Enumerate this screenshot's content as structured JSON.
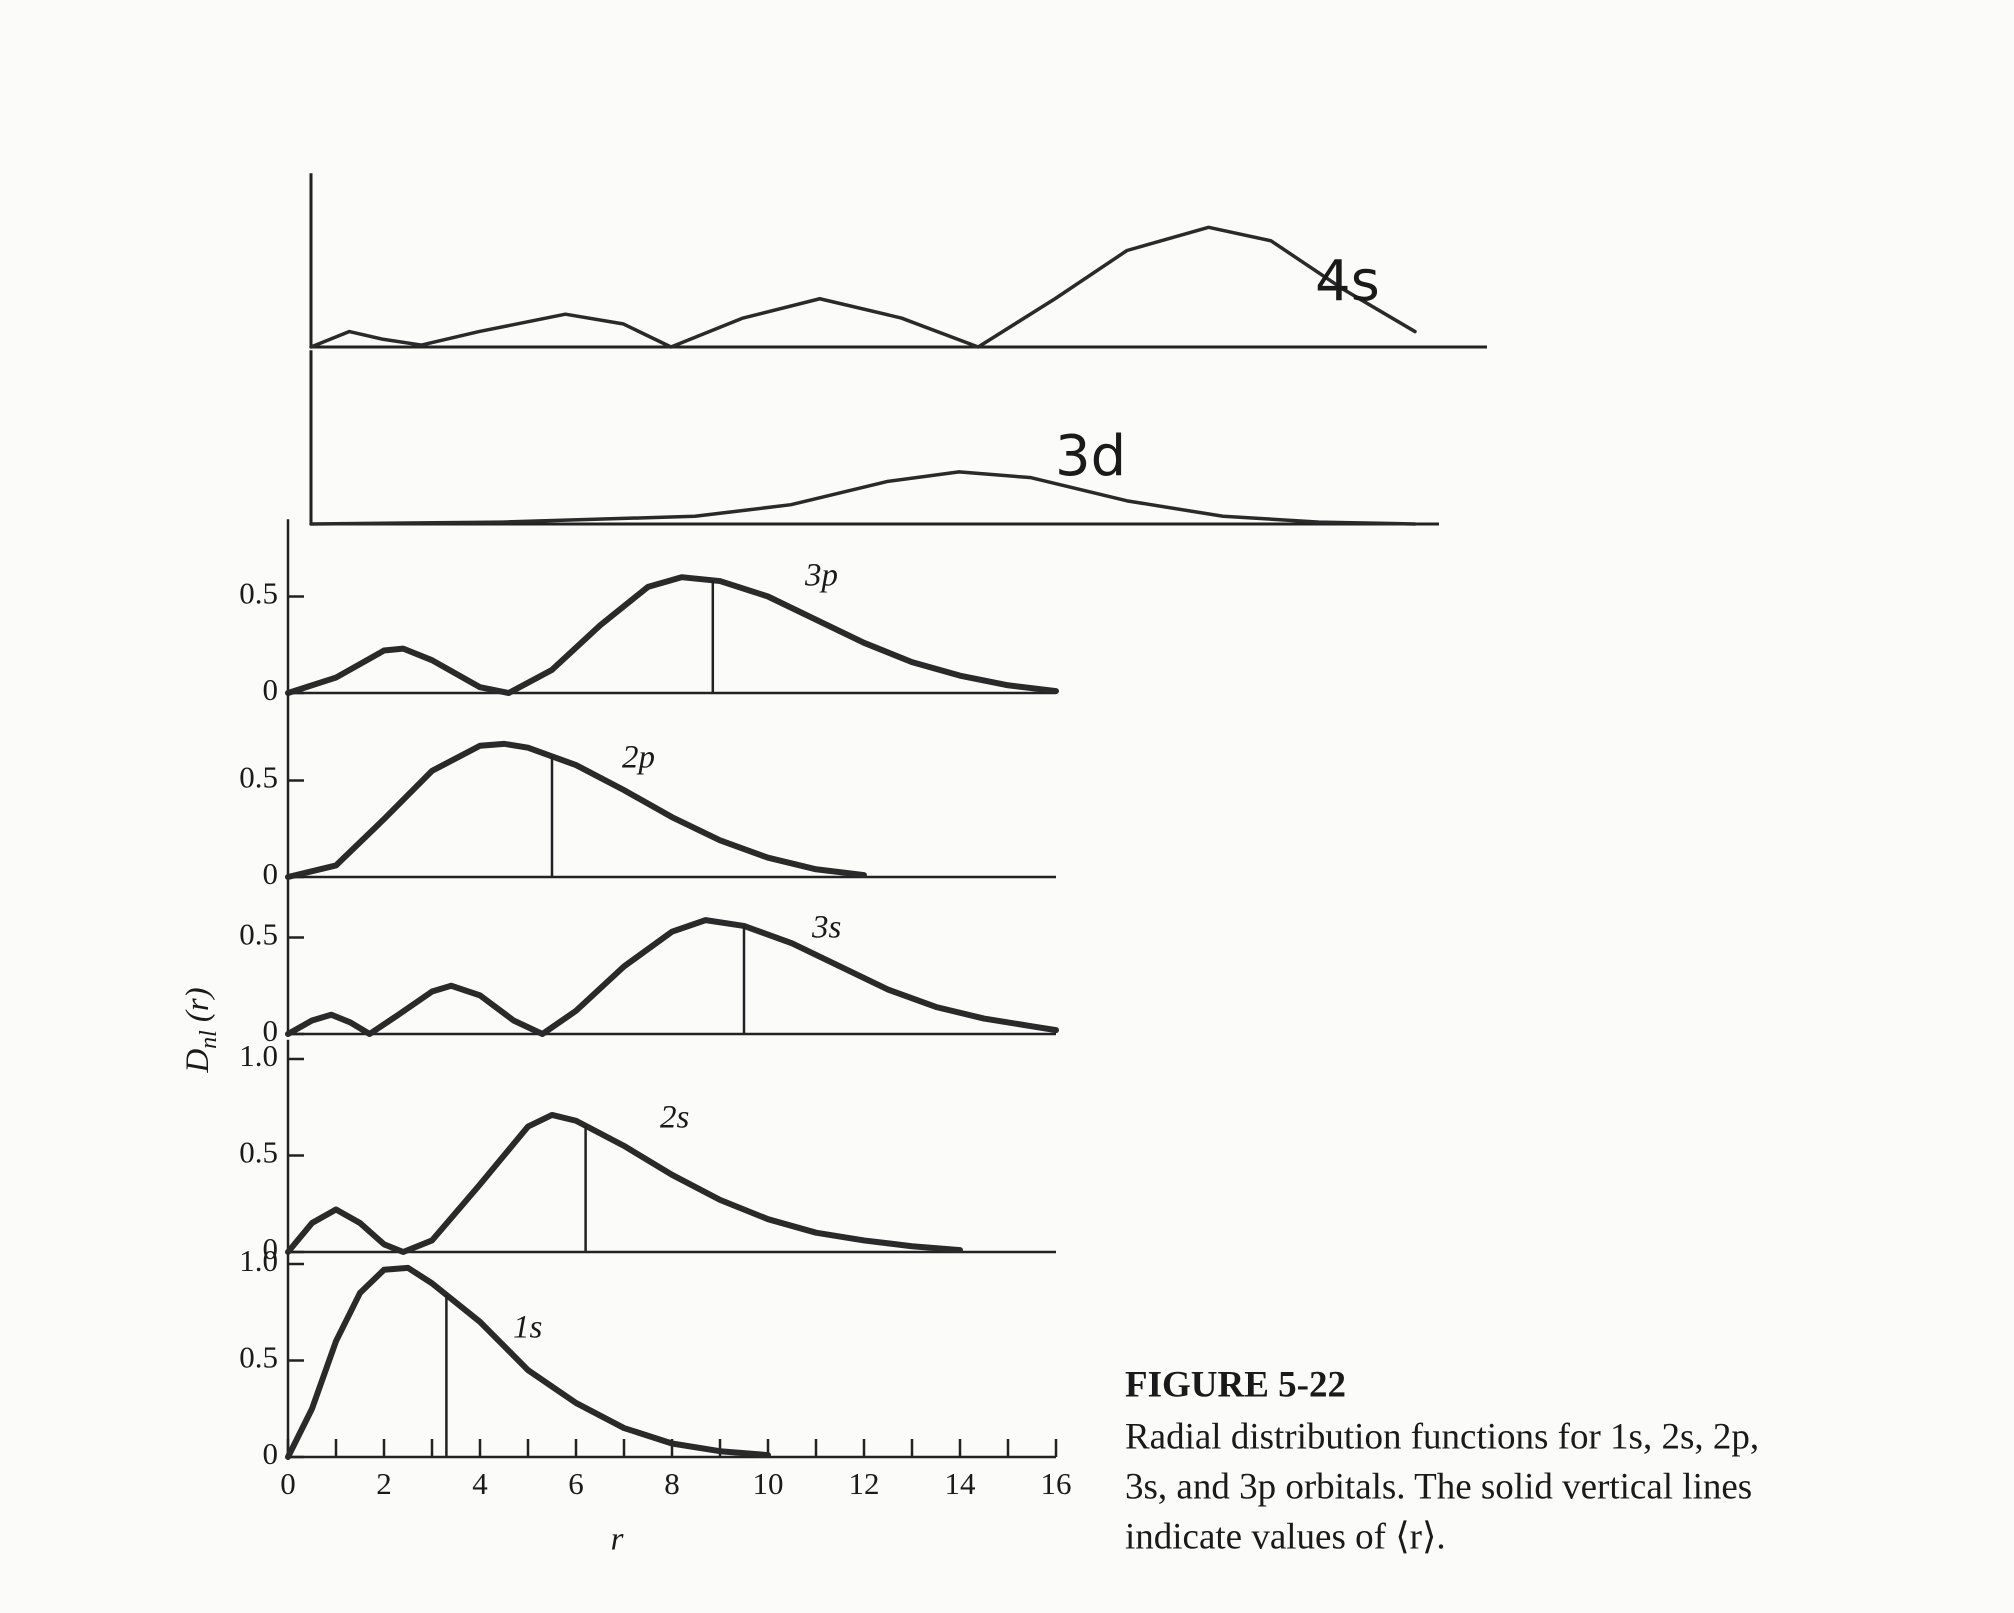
{
  "chart_data": [
    {
      "type": "line",
      "series": [
        {
          "name": "4s",
          "color": "#2a2a2a",
          "x": [
            0,
            0.8,
            1.5,
            2.3,
            3.5,
            5.3,
            6.5,
            7.5,
            9,
            10.6,
            12.3,
            13.9,
            15.5,
            17,
            18.7,
            20,
            21.5,
            23
          ],
          "values": [
            0,
            0.08,
            0.04,
            0.01,
            0.08,
            0.17,
            0.12,
            0,
            0.15,
            0.25,
            0.15,
            0,
            0.25,
            0.5,
            0.62,
            0.55,
            0.3,
            0.08
          ]
        }
      ],
      "xlim": [
        0,
        24.5
      ],
      "ylim": [
        0,
        0.9
      ]
    },
    {
      "type": "line",
      "series": [
        {
          "name": "3d",
          "color": "#2a2a2a",
          "x": [
            0,
            4,
            8,
            10,
            12,
            13.5,
            15,
            17,
            19,
            21,
            23
          ],
          "values": [
            0,
            0.01,
            0.04,
            0.1,
            0.22,
            0.27,
            0.24,
            0.12,
            0.04,
            0.01,
            0
          ]
        }
      ],
      "xlim": [
        0,
        23.5
      ],
      "ylim": [
        0,
        0.9
      ]
    },
    {
      "type": "line",
      "series": [
        {
          "name": "3p",
          "color": "#2a2a2a",
          "x": [
            0,
            1,
            2,
            2.4,
            3,
            4,
            4.6,
            5.5,
            6.5,
            7.5,
            8.2,
            9,
            10,
            11,
            12,
            13,
            14,
            15,
            16
          ],
          "values": [
            0,
            0.08,
            0.22,
            0.23,
            0.17,
            0.03,
            0,
            0.12,
            0.35,
            0.55,
            0.6,
            0.58,
            0.5,
            0.38,
            0.26,
            0.16,
            0.09,
            0.04,
            0.01
          ]
        }
      ],
      "mean_r": 8.85,
      "xlim": [
        0,
        16
      ],
      "ylim": [
        0,
        0.9
      ],
      "yticks": [
        0,
        0.5
      ]
    },
    {
      "type": "line",
      "series": [
        {
          "name": "2p",
          "color": "#2a2a2a",
          "x": [
            0,
            1,
            2,
            3,
            4,
            4.5,
            5,
            6,
            7,
            8,
            9,
            10,
            11,
            12
          ],
          "values": [
            0,
            0.06,
            0.3,
            0.55,
            0.68,
            0.69,
            0.67,
            0.58,
            0.45,
            0.31,
            0.19,
            0.1,
            0.04,
            0.01
          ]
        }
      ],
      "mean_r": 5.5,
      "xlim": [
        0,
        16
      ],
      "ylim": [
        0,
        0.95
      ],
      "yticks": [
        0,
        0.5
      ]
    },
    {
      "type": "line",
      "series": [
        {
          "name": "3s",
          "color": "#2a2a2a",
          "x": [
            0,
            0.5,
            0.9,
            1.3,
            1.7,
            2.3,
            3,
            3.4,
            4,
            4.7,
            5.3,
            6,
            7,
            8,
            8.7,
            9.5,
            10.5,
            11.5,
            12.5,
            13.5,
            14.5,
            15.5,
            16
          ],
          "values": [
            0,
            0.07,
            0.1,
            0.06,
            0,
            0.1,
            0.22,
            0.25,
            0.2,
            0.07,
            0,
            0.12,
            0.35,
            0.53,
            0.59,
            0.56,
            0.47,
            0.35,
            0.23,
            0.14,
            0.08,
            0.04,
            0.02
          ]
        }
      ],
      "mean_r": 9.5,
      "xlim": [
        0,
        16
      ],
      "ylim": [
        0,
        0.8
      ],
      "yticks": [
        0,
        0.5
      ]
    },
    {
      "type": "line",
      "series": [
        {
          "name": "2s",
          "color": "#2a2a2a",
          "x": [
            0,
            0.5,
            1,
            1.5,
            2,
            2.4,
            3,
            4,
            5,
            5.5,
            6,
            7,
            8,
            9,
            10,
            11,
            12,
            13,
            14
          ],
          "values": [
            0,
            0.15,
            0.22,
            0.15,
            0.04,
            0,
            0.06,
            0.35,
            0.65,
            0.71,
            0.68,
            0.55,
            0.4,
            0.27,
            0.17,
            0.1,
            0.06,
            0.03,
            0.01
          ]
        }
      ],
      "mean_r": 6.2,
      "xlim": [
        0,
        16
      ],
      "ylim": [
        0,
        1.1
      ],
      "yticks": [
        0,
        0.5,
        {
          "value": 1,
          "label": "1.0"
        }
      ]
    },
    {
      "type": "line",
      "series": [
        {
          "name": "1s",
          "color": "#2a2a2a",
          "x": [
            0,
            0.5,
            1,
            1.5,
            2,
            2.5,
            3,
            4,
            5,
            6,
            7,
            8,
            9,
            10
          ],
          "values": [
            0,
            0.25,
            0.6,
            0.85,
            0.97,
            0.98,
            0.9,
            0.7,
            0.45,
            0.28,
            0.15,
            0.07,
            0.03,
            0.01
          ]
        }
      ],
      "mean_r": 3.3,
      "xlim": [
        0,
        16
      ],
      "ylim": [
        0,
        1.05
      ],
      "yticks": [
        0,
        0.5,
        {
          "value": 1,
          "label": "1.0"
        }
      ],
      "xticks": [
        0,
        2,
        4,
        6,
        8,
        10,
        12,
        14,
        16
      ],
      "x_label": "r"
    }
  ],
  "y_label": {
    "symbol": "D",
    "subscript": "nl",
    "argument": "(r)"
  },
  "figure": {
    "title": "FIGURE 5-22",
    "caption": [
      "Radial distribution functions for 1s, 2s, 2p,",
      "3s, and 3p orbitals. The solid vertical lines",
      "indicate values of ⟨r⟩."
    ]
  }
}
